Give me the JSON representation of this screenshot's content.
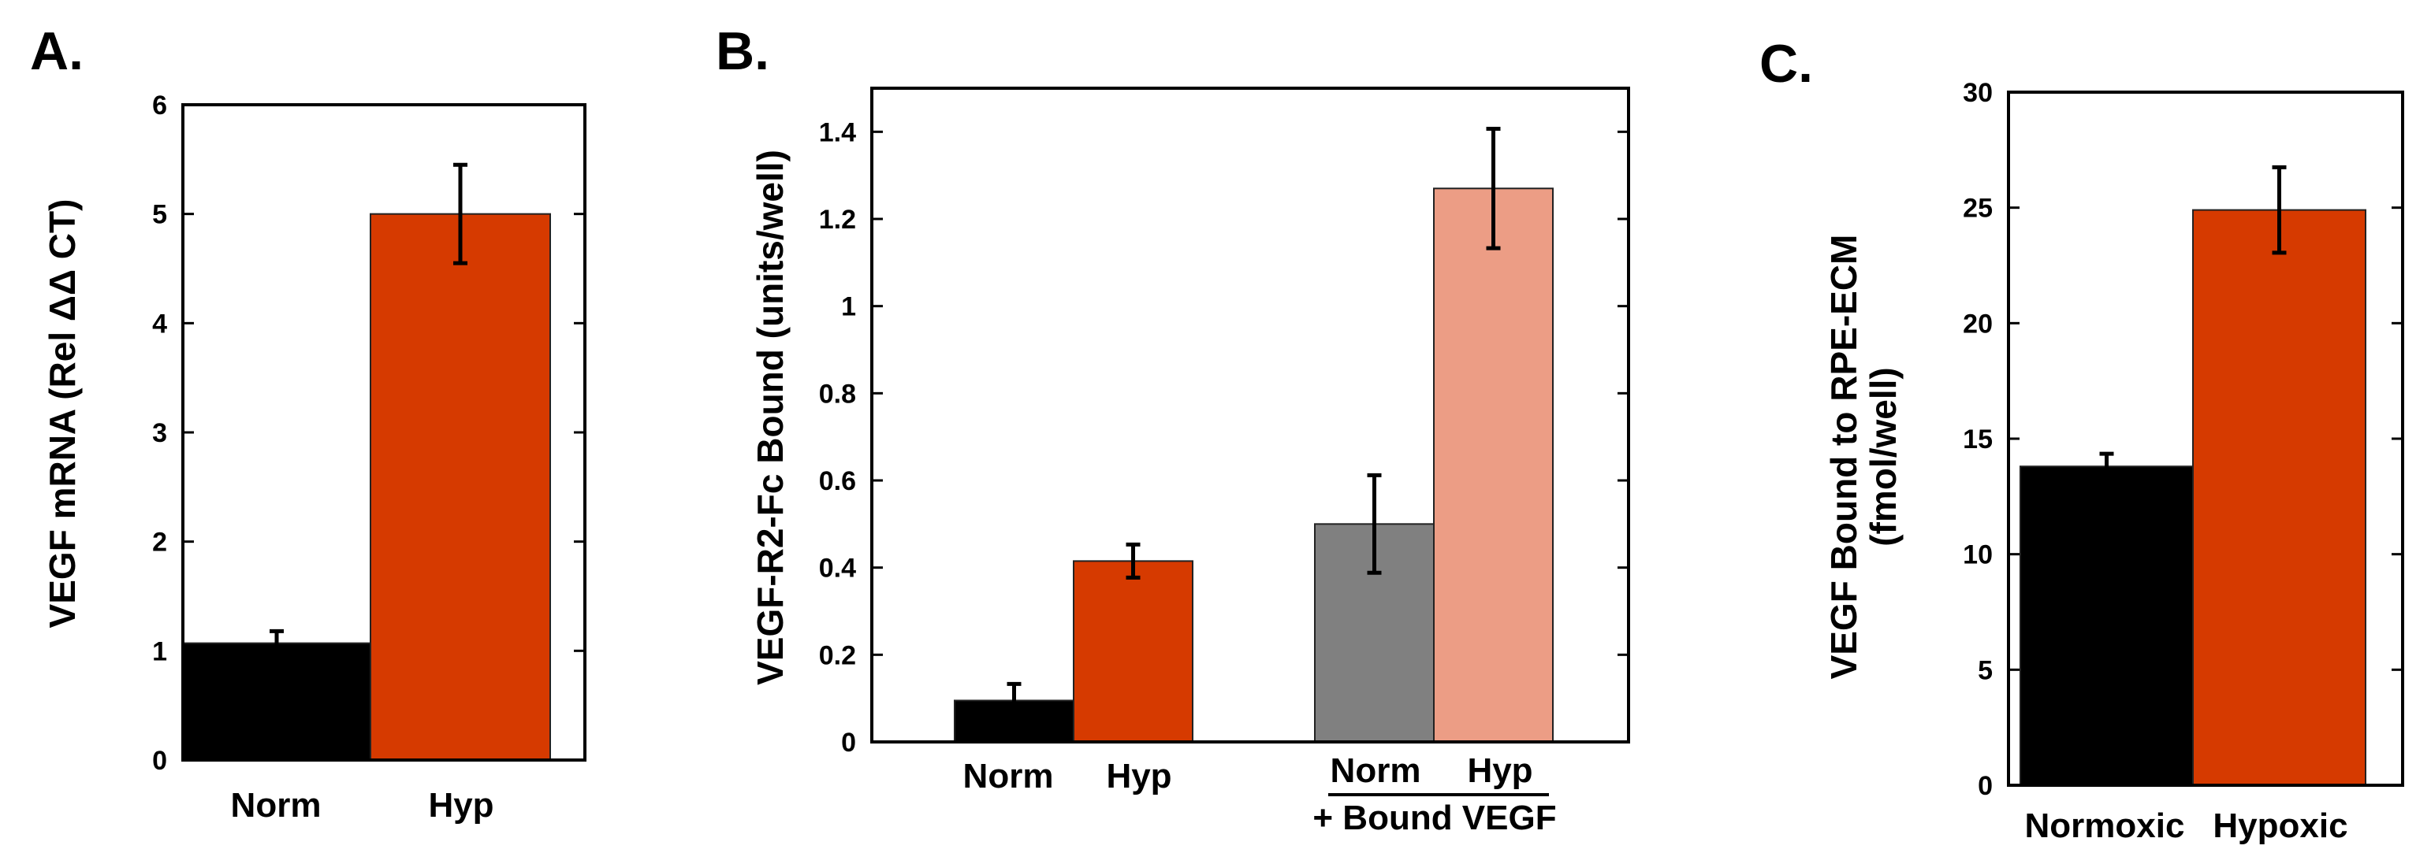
{
  "panels": [
    {
      "letter": "A."
    },
    {
      "letter": "B."
    },
    {
      "letter": "C."
    }
  ],
  "chart_data": [
    {
      "type": "bar",
      "panel": "A.",
      "ylabel": "VEGF mRNA (Rel ΔΔ CT)",
      "ylim": [
        0,
        6
      ],
      "yticks": [
        0,
        1,
        2,
        3,
        4,
        5,
        6
      ],
      "bars": [
        {
          "name": "Norm",
          "value": 1.07,
          "error": 0.11,
          "color": "#000000"
        },
        {
          "name": "Hyp",
          "value": 5.0,
          "error": 0.45,
          "color": "#d63a00"
        }
      ],
      "group_labels": []
    },
    {
      "type": "bar",
      "panel": "B.",
      "ylabel": "VEGF-R2-Fc Bound (units/well)",
      "ylim": [
        0,
        1.5
      ],
      "yticks": [
        0,
        0.2,
        0.4,
        0.6,
        0.8,
        1,
        1.2,
        1.4
      ],
      "ytick_labels": [
        "0",
        "0.2",
        "0.4",
        "0.6",
        "0.8",
        "1",
        "1.2",
        "1.4"
      ],
      "bars": [
        {
          "name": "Norm",
          "value": 0.095,
          "error": 0.038,
          "color": "#000000"
        },
        {
          "name": "Hyp",
          "value": 0.415,
          "error": 0.038,
          "color": "#d63a00"
        },
        {
          "name": "Norm",
          "value": 0.5,
          "error": 0.112,
          "color": "#808080"
        },
        {
          "name": "Hyp",
          "value": 1.27,
          "error": 0.137,
          "color": "#ec9d85"
        }
      ],
      "group_labels": [
        "+ Bound VEGF"
      ]
    },
    {
      "type": "bar",
      "panel": "C.",
      "ylabel": "VEGF Bound to RPE-ECM",
      "ylabel2": "(fmol/well)",
      "ylim": [
        0,
        30
      ],
      "yticks": [
        0,
        5,
        10,
        15,
        20,
        25,
        30
      ],
      "bars": [
        {
          "name": "Normoxic",
          "value": 13.8,
          "error": 0.55,
          "color": "#000000"
        },
        {
          "name": "Hypoxic",
          "value": 24.9,
          "error": 1.85,
          "color": "#d63a00"
        }
      ],
      "group_labels": []
    }
  ]
}
